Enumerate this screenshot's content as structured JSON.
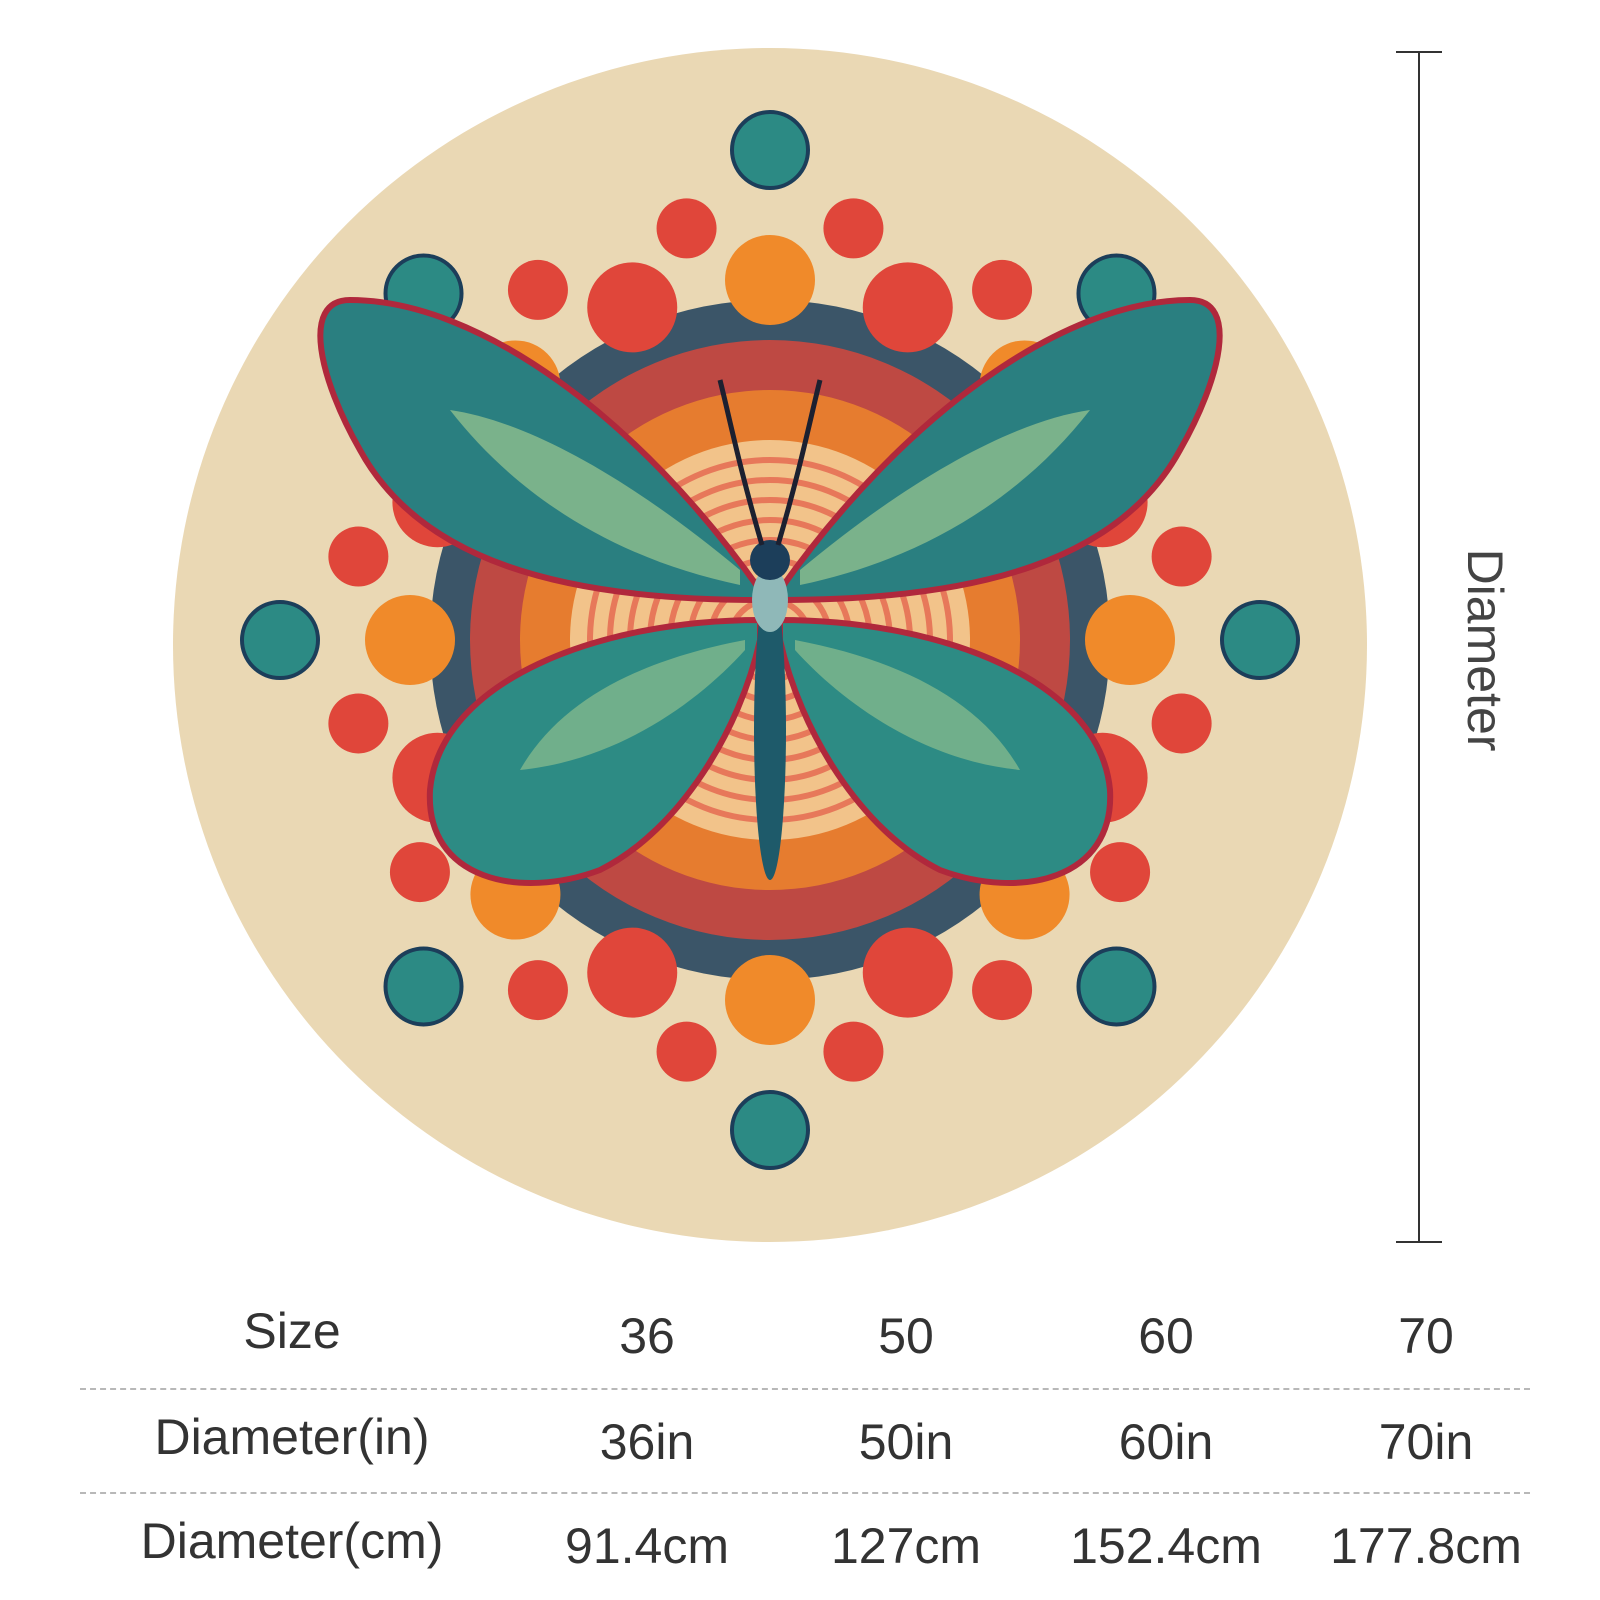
{
  "colors": {
    "background": "#ffffff",
    "rug": "#ead8b4",
    "wing_teal": "#2c8a84",
    "wing_dark": "#1c3e5a",
    "accent_red": "#e0463a",
    "accent_orange": "#f08a2a",
    "outline": "#b0283c"
  },
  "dimension": {
    "label": "Diameter"
  },
  "table": {
    "rows": [
      {
        "label": "Size",
        "values": [
          "36",
          "50",
          "60",
          "70"
        ]
      },
      {
        "label": "Diameter(in)",
        "values": [
          "36in",
          "50in",
          "60in",
          "70in"
        ]
      },
      {
        "label": "Diameter(cm)",
        "values": [
          "91.4cm",
          "127cm",
          "152.4cm",
          "177.8cm"
        ]
      }
    ]
  }
}
